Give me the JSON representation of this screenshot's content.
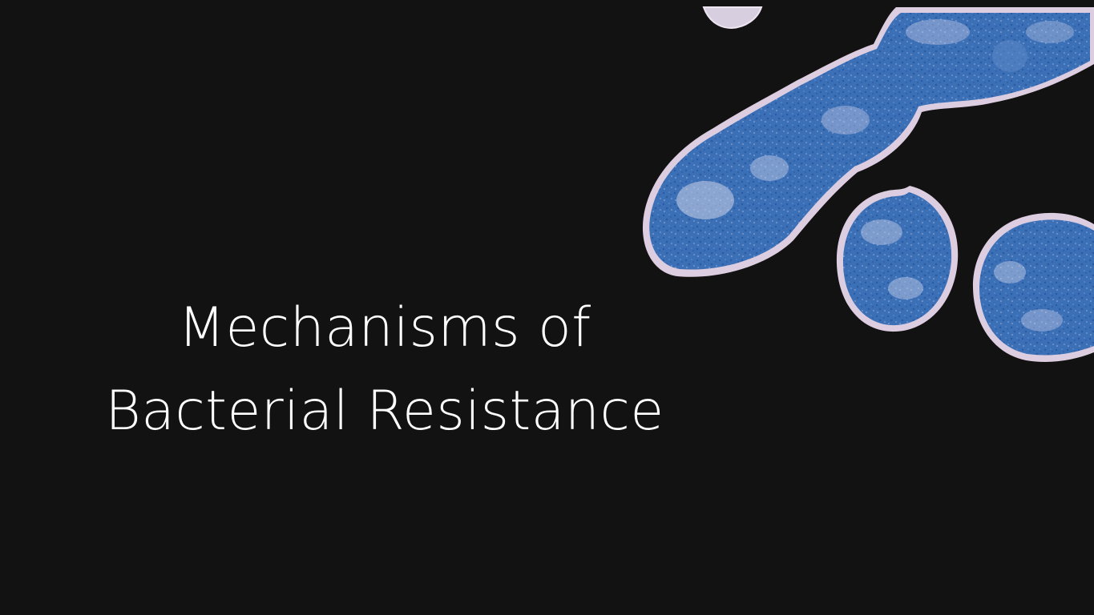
{
  "slide": {
    "background_color": "#121212",
    "title_lines": [
      "Mechanisms of",
      "Bacterial Resistance"
    ],
    "title_color": "#ffffff",
    "image": {
      "subject": "bacteria-micrograph",
      "cell_color": "#3a6fb8",
      "membrane_color": "#d9c9dd"
    }
  }
}
